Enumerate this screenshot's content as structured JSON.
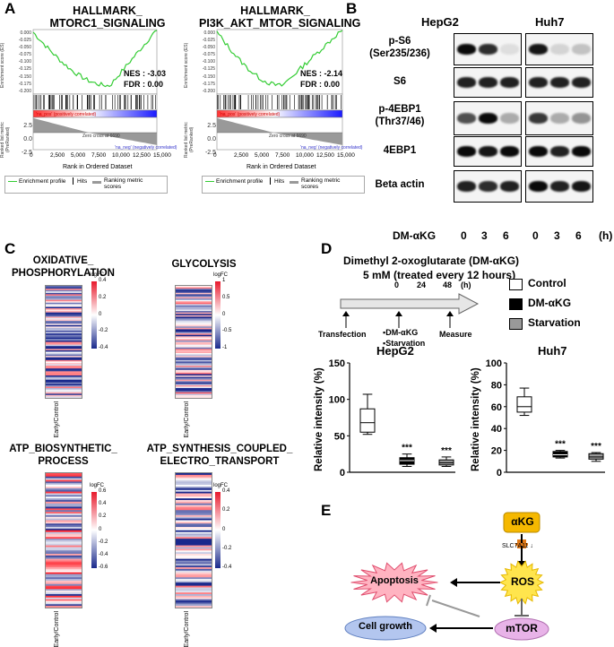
{
  "panels": {
    "a": "A",
    "b": "B",
    "c": "C",
    "d": "D",
    "e": "E"
  },
  "panelA": {
    "left": {
      "title1": "HALLMARK_",
      "title2": "MTORC1_SIGNALING",
      "nes": "NES : -3.03",
      "fdr": "FDR : 0.00"
    },
    "right": {
      "title1": "HALLMARK_",
      "title2": "PI3K_AKT_MTOR_SIGNALING",
      "nes": "NES : -2.14",
      "fdr": "FDR : 0.00"
    },
    "es_ticks": [
      "0.000",
      "-0.025",
      "-0.050",
      "-0.075",
      "-0.100",
      "-0.125",
      "-0.150",
      "-0.175",
      "-0.200"
    ],
    "rank_ticks": [
      "2.5",
      "0.0",
      "-2.5"
    ],
    "x_ticks": [
      "0",
      "2,500",
      "5,000",
      "7,500",
      "10,000",
      "12,500",
      "15,000"
    ],
    "es_axis": "Enrichment score (ES)",
    "rank_axis": "Ranked list metric (PreRanked)",
    "x_axis": "Rank in Ordered Dataset",
    "pos_label": "'na_pos' (positively correlated)",
    "neg_label": "'na_neg' (negatively correlated)",
    "zero_label": "Zero cross at 6690",
    "legend": {
      "profile": "Enrichment profile",
      "hits": "Hits",
      "ranking": "Ranking metric scores"
    }
  },
  "panelB": {
    "cells": [
      "HepG2",
      "Huh7"
    ],
    "rows": [
      {
        "line1": "p-S6",
        "line2": "(Ser235/236)"
      },
      {
        "line1": "S6",
        "line2": ""
      },
      {
        "line1": "p-4EBP1",
        "line2": "(Thr37/46)"
      },
      {
        "line1": "4EBP1",
        "line2": ""
      },
      {
        "line1": "Beta actin",
        "line2": ""
      }
    ],
    "treatment": "DM-αKG",
    "times": [
      "0",
      "3",
      "6",
      "0",
      "3",
      "6"
    ],
    "unit": "(h)"
  },
  "panelC": {
    "titles": [
      {
        "l1": "OXIDATIVE_",
        "l2": "PHOSPHORYLATION"
      },
      {
        "l1": "GLYCOLYSIS",
        "l2": ""
      },
      {
        "l1": "ATP_BIOSYNTHETIC_",
        "l2": "PROCESS"
      },
      {
        "l1": "ATP_SYNTHESIS_COUPLED_",
        "l2": "ELECTRO_TRANSPORT"
      }
    ],
    "legend_title": "logFC",
    "scales": [
      [
        "0.4",
        "0.2",
        "0",
        "-0.2",
        "-0.4"
      ],
      [
        "1",
        "0.5",
        "0",
        "-0.5",
        "-1"
      ],
      [
        "0.6",
        "0.4",
        "0.2",
        "0",
        "-0.2",
        "-0.4",
        "-0.6"
      ],
      [
        "0.4",
        "0.2",
        "0",
        "-0.2",
        "-0.4"
      ]
    ],
    "xlabel1": "Early",
    "xlabel2": "/Control"
  },
  "panelD": {
    "title": "Dimethyl 2-oxoglutarate (DM-αKG)",
    "subtitle": "5 mM  (treated every 12 hours)",
    "timeline": [
      "0",
      "24",
      "48",
      "(h)"
    ],
    "events": [
      "Transfection",
      "▪DM-αKG",
      "▪Starvation",
      "Measure"
    ],
    "legend": [
      "Control",
      "DM-αKG",
      "Starvation"
    ],
    "chart_data": [
      {
        "type": "box",
        "title": "HepG2",
        "ylabel": "Relative intensity (%)",
        "ylim": [
          0,
          150
        ],
        "yticks": [
          "0",
          "50",
          "100",
          "150"
        ],
        "series": [
          {
            "name": "Control",
            "min": 52,
            "q1": 55,
            "median": 68,
            "q3": 87,
            "max": 107
          },
          {
            "name": "DM-αKG",
            "min": 8,
            "q1": 11,
            "median": 16,
            "q3": 20,
            "max": 25
          },
          {
            "name": "Starvation",
            "min": 8,
            "q1": 10,
            "median": 13,
            "q3": 17,
            "max": 21
          }
        ],
        "annotations": [
          "***",
          "***"
        ]
      },
      {
        "type": "box",
        "title": "Huh7",
        "ylabel": "Relative intensity (%)",
        "ylim": [
          0,
          100
        ],
        "yticks": [
          "0",
          "20",
          "40",
          "60",
          "80",
          "100"
        ],
        "series": [
          {
            "name": "Control",
            "min": 52,
            "q1": 55,
            "median": 60,
            "q3": 69,
            "max": 77
          },
          {
            "name": "DM-αKG",
            "min": 13,
            "q1": 14,
            "median": 16,
            "q3": 19,
            "max": 20
          },
          {
            "name": "Starvation",
            "min": 10,
            "q1": 12,
            "median": 14,
            "q3": 17,
            "max": 18
          }
        ],
        "annotations": [
          "***",
          "***"
        ]
      }
    ]
  },
  "panelE": {
    "akg": "αKG",
    "slc": "SLC7A11",
    "down_arrow": "↓",
    "ros": "ROS",
    "apoptosis": "Apoptosis",
    "mtor": "mTOR",
    "growth": "Cell growth"
  },
  "colors": {
    "gsea_line": "#33cc33",
    "heat_pos": "#e8192c",
    "heat_neg": "#1a2a8c",
    "akg_box": "#f5b800",
    "ros": "#ffe54d",
    "apoptosis": "#ffb3c1",
    "mtor": "#e8b3e8",
    "growth": "#b3c6ef"
  }
}
